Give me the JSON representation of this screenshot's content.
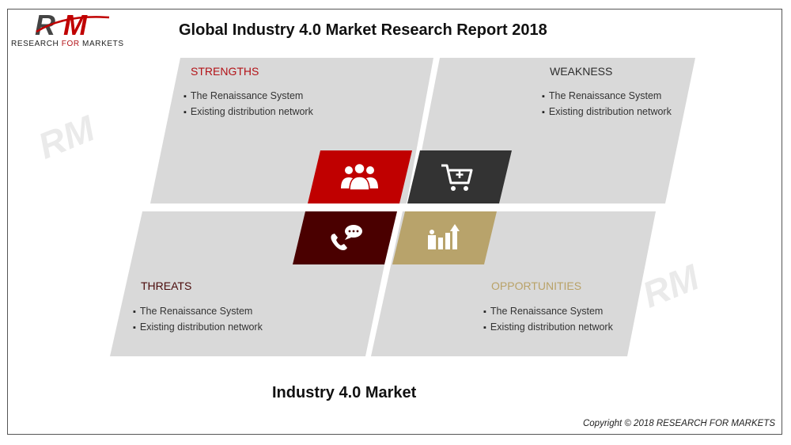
{
  "logo": {
    "letters": "RM",
    "text_before": "RESEARCH ",
    "text_for": "FOR",
    "text_after": " MARKETS"
  },
  "title": "Global Industry 4.0 Market Research Report 2018",
  "subtitle": "Industry 4.0 Market",
  "copyright": "Copyright © 2018 RESEARCH FOR MARKETS",
  "colors": {
    "panel": "#d9d9d9",
    "strengths_tile": "#c00000",
    "weakness_tile": "#333333",
    "threats_tile": "#4a0000",
    "opportunities_tile": "#b8a36b"
  },
  "quadrants": {
    "strengths": {
      "heading": "STRENGTHS",
      "icon": "people-icon",
      "items": [
        "The Renaissance System",
        "Existing distribution network"
      ]
    },
    "weakness": {
      "heading": "WEAKNESS",
      "icon": "shopping-cart-icon",
      "items": [
        "The Renaissance System",
        "Existing distribution network"
      ]
    },
    "threats": {
      "heading": "THREATS",
      "icon": "phone-chat-icon",
      "items": [
        "The Renaissance System",
        "Existing distribution network"
      ]
    },
    "opportunities": {
      "heading": "OPPORTUNITIES",
      "icon": "growth-chart-icon",
      "items": [
        "The Renaissance System",
        "Existing distribution network"
      ]
    }
  }
}
